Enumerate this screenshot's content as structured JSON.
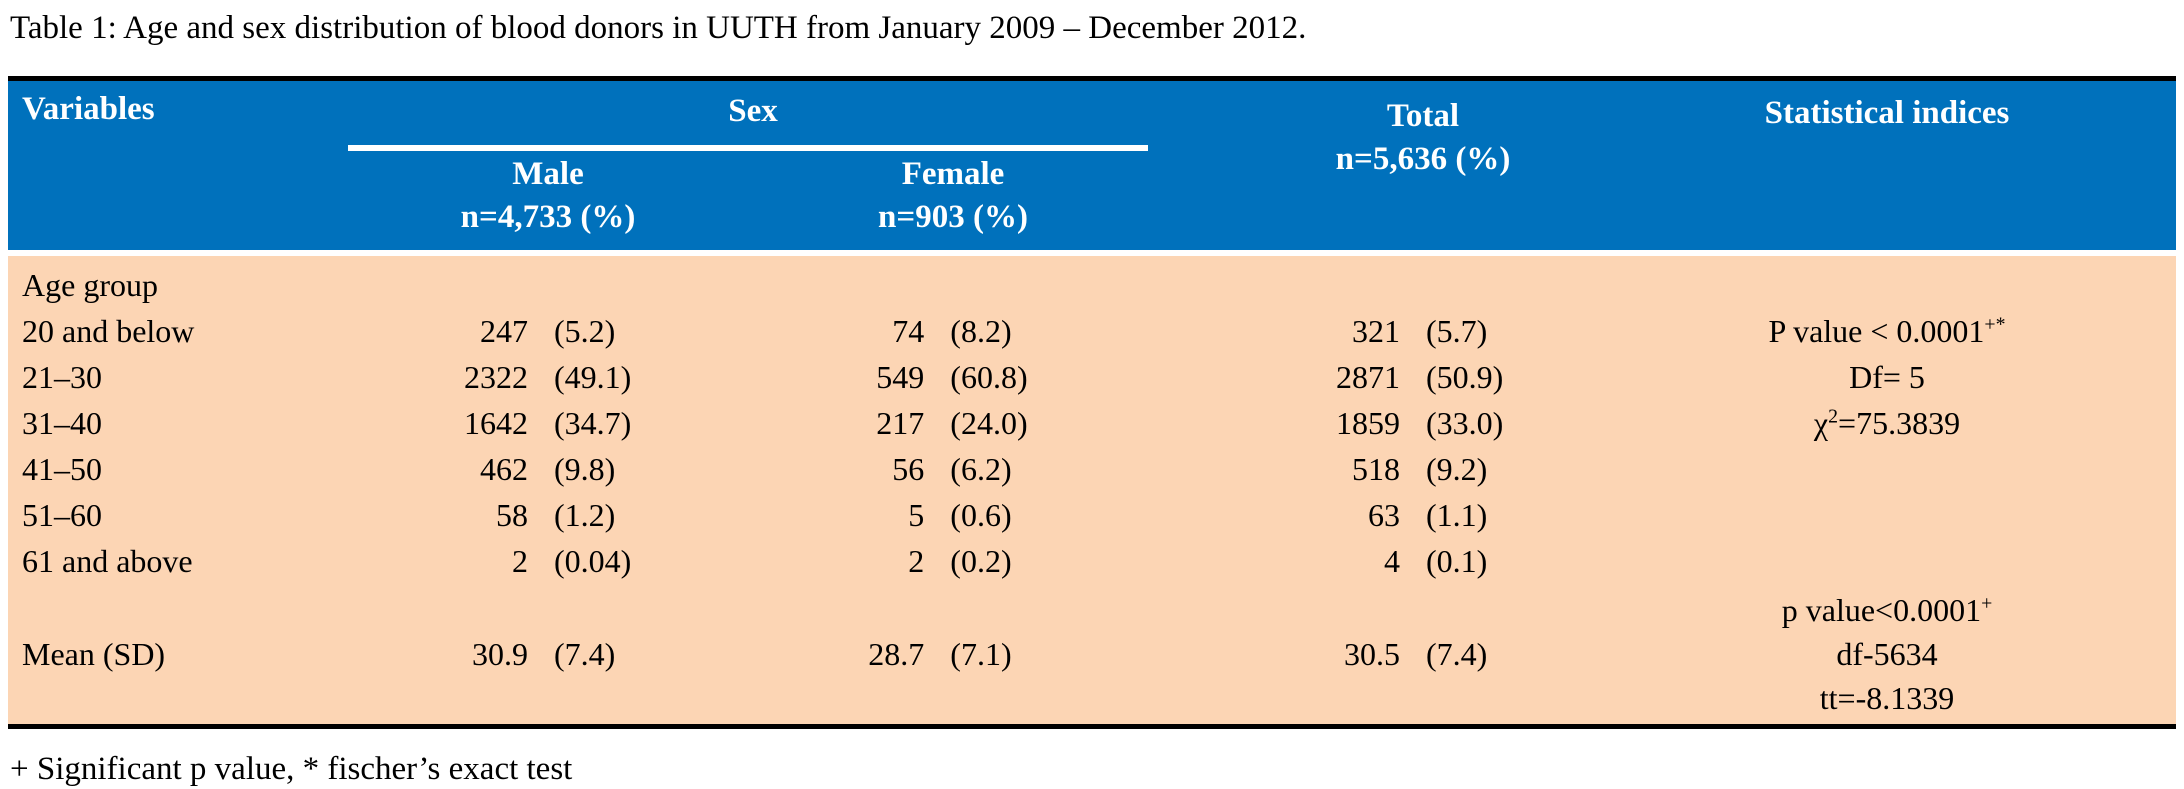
{
  "title": "Table 1: Age and sex distribution of blood donors in UUTH from January 2009 – December 2012.",
  "colors": {
    "header_bg": "#0071bc",
    "body_bg": "#fcd5b4",
    "header_text": "#ffffff",
    "body_text": "#000000"
  },
  "header": {
    "variables": "Variables",
    "sex_group": "Sex",
    "male_label": "Male",
    "male_n": "n=4,733 (%)",
    "female_label": "Female",
    "female_n": "n=903 (%)",
    "total_label": "Total",
    "total_n": "n=5,636 (%)",
    "stats_label": "Statistical indices"
  },
  "rows": [
    {
      "label": "Age group"
    },
    {
      "label": "20 and below",
      "male": [
        "247",
        "(5.2)"
      ],
      "female": [
        "74",
        "(8.2)"
      ],
      "total": [
        "321",
        "(5.7)"
      ],
      "stat": [
        {
          "t": "P value < 0.0001"
        },
        {
          "t": "+*",
          "sup": true
        }
      ]
    },
    {
      "label": "21–30",
      "male": [
        "2322",
        "(49.1)"
      ],
      "female": [
        "549",
        "(60.8)"
      ],
      "total": [
        "2871",
        "(50.9)"
      ],
      "stat": [
        {
          "t": "Df= 5"
        }
      ]
    },
    {
      "label": "31–40",
      "male": [
        "1642",
        "(34.7)"
      ],
      "female": [
        "217",
        "(24.0)"
      ],
      "total": [
        "1859",
        "(33.0)"
      ],
      "stat": [
        {
          "t": "χ"
        },
        {
          "t": "2",
          "sup": true
        },
        {
          "t": "=75.3839"
        }
      ]
    },
    {
      "label": "41–50",
      "male": [
        "462",
        "(9.8)"
      ],
      "female": [
        "56",
        "(6.2)"
      ],
      "total": [
        "518",
        "(9.2)"
      ]
    },
    {
      "label": "51–60",
      "male": [
        "58",
        "(1.2)"
      ],
      "female": [
        "5",
        "(0.6)"
      ],
      "total": [
        "63",
        "(1.1)"
      ]
    },
    {
      "label": "61 and above",
      "male": [
        "2",
        "(0.04)"
      ],
      "female": [
        "2",
        "(0.2)"
      ],
      "total": [
        "4",
        "(0.1)"
      ]
    }
  ],
  "mean_row": {
    "label": "Mean (SD)",
    "male": [
      "30.9",
      "(7.4)"
    ],
    "female": [
      "28.7",
      "(7.1)"
    ],
    "total": [
      "30.5",
      "(7.4)"
    ],
    "stat_lines": [
      [
        {
          "t": "p value<0.0001"
        },
        {
          "t": "+",
          "sup": true
        }
      ],
      [
        {
          "t": "df-5634"
        }
      ],
      [
        {
          "t": "tt=-8.1339"
        }
      ]
    ]
  },
  "footnote": "+ Significant p value, * fischer’s exact test"
}
